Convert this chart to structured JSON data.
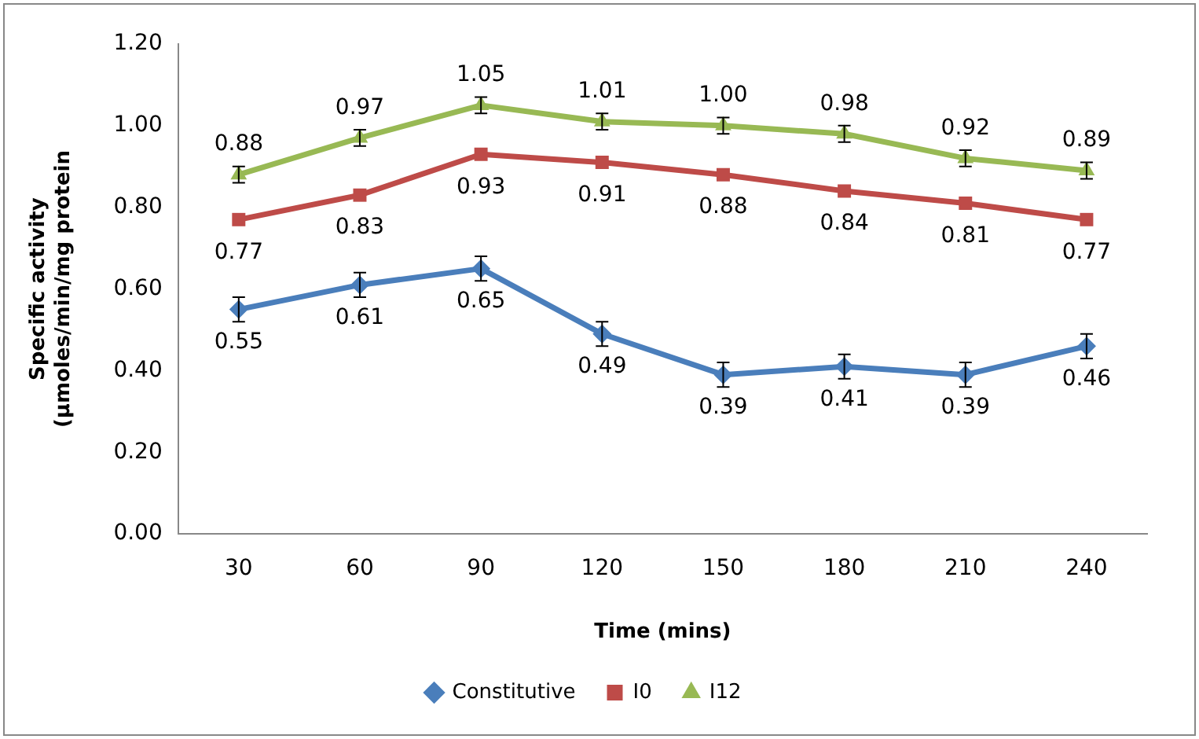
{
  "chart_data": {
    "type": "line",
    "xlabel": "Time (mins)",
    "ylabel": "Specific activity\n(µmoles/min/mg protein",
    "categories": [
      "30",
      "60",
      "90",
      "120",
      "150",
      "180",
      "210",
      "240"
    ],
    "series": [
      {
        "name": "Constitutive",
        "color": "#4a7ebb",
        "marker": "diamond",
        "values": [
          0.55,
          0.61,
          0.65,
          0.49,
          0.39,
          0.41,
          0.39,
          0.46
        ],
        "value_labels": [
          "0.55",
          "0.61",
          "0.65",
          "0.49",
          "0.39",
          "0.41",
          "0.39",
          "0.46"
        ],
        "errors": [
          0.03,
          0.03,
          0.03,
          0.03,
          0.03,
          0.03,
          0.03,
          0.03
        ]
      },
      {
        "name": "I0",
        "color": "#be4b48",
        "marker": "square",
        "values": [
          0.77,
          0.83,
          0.93,
          0.91,
          0.88,
          0.84,
          0.81,
          0.77
        ],
        "value_labels": [
          "0.77",
          "0.83",
          "0.93",
          "0.91",
          "0.88",
          "0.84",
          "0.81",
          "0.77"
        ]
      },
      {
        "name": "I12",
        "color": "#98b954",
        "marker": "triangle",
        "values": [
          0.88,
          0.97,
          1.05,
          1.01,
          1.0,
          0.98,
          0.92,
          0.89
        ],
        "value_labels": [
          "0.88",
          "0.97",
          "1.05",
          "1.01",
          "1.00",
          "0.98",
          "0.92",
          "0.89"
        ],
        "errors": [
          0.02,
          0.02,
          0.02,
          0.02,
          0.02,
          0.02,
          0.02,
          0.02
        ]
      }
    ],
    "ylim": [
      0,
      1.2
    ],
    "yticks": [
      {
        "value": 0,
        "label": "0.00"
      },
      {
        "value": 0.2,
        "label": "0.20"
      },
      {
        "value": 0.4,
        "label": "0.40"
      },
      {
        "value": 0.6,
        "label": "0.60"
      },
      {
        "value": 0.8,
        "label": "0.80"
      },
      {
        "value": 1.0,
        "label": "1.00"
      },
      {
        "value": 1.2,
        "label": "1.20"
      }
    ],
    "grid": false,
    "legend": "bottom"
  }
}
